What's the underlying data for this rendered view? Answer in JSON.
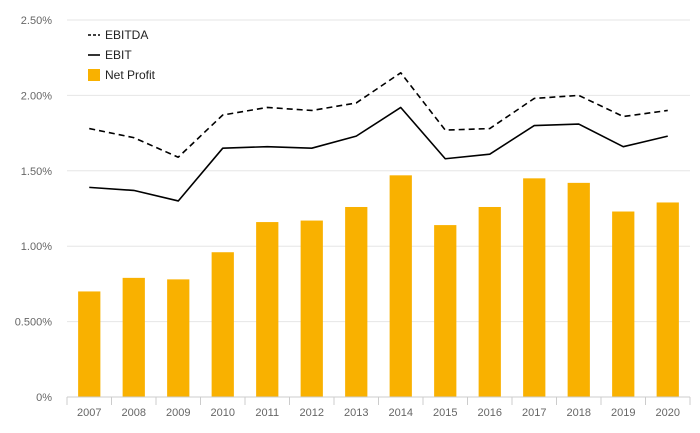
{
  "chart_data": {
    "type": "bar",
    "categories": [
      "2007",
      "2008",
      "2009",
      "2010",
      "2011",
      "2012",
      "2013",
      "2014",
      "2015",
      "2016",
      "2017",
      "2018",
      "2019",
      "2020"
    ],
    "series": [
      {
        "name": "EBITDA",
        "kind": "line",
        "style": "dashed",
        "color": "#000000",
        "values": [
          1.78,
          1.72,
          1.59,
          1.87,
          1.92,
          1.9,
          1.95,
          2.15,
          1.77,
          1.78,
          1.98,
          2.0,
          1.86,
          1.9
        ]
      },
      {
        "name": "EBIT",
        "kind": "line",
        "style": "solid",
        "color": "#000000",
        "values": [
          1.39,
          1.37,
          1.3,
          1.65,
          1.66,
          1.65,
          1.73,
          1.92,
          1.58,
          1.61,
          1.8,
          1.81,
          1.66,
          1.73
        ]
      },
      {
        "name": "Net Profit",
        "kind": "bar",
        "color": "#F9B100",
        "values": [
          0.7,
          0.79,
          0.78,
          0.96,
          1.16,
          1.17,
          1.26,
          1.47,
          1.14,
          1.26,
          1.45,
          1.42,
          1.23,
          1.29
        ]
      }
    ],
    "ylim": [
      0,
      2.5
    ],
    "yticks": [
      0,
      0.5,
      1.0,
      1.5,
      2.0,
      2.5
    ],
    "ytick_labels": [
      "0%",
      "0.500%",
      "1.00%",
      "1.50%",
      "2.00%",
      "2.50%"
    ],
    "title": "",
    "xlabel": "",
    "ylabel": "",
    "grid": true,
    "legend_position": "top-left"
  }
}
